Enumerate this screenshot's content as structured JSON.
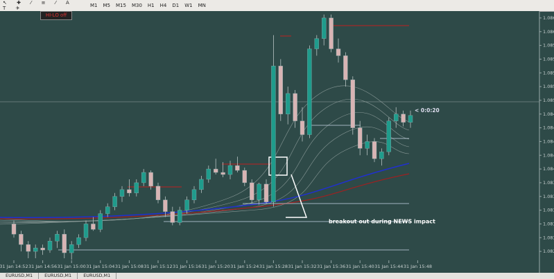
{
  "toolbar": {
    "timeframes": [
      "M1",
      "M5",
      "M15",
      "M30",
      "H1",
      "H4",
      "D1",
      "W1",
      "MN"
    ],
    "button": "HI-LO off"
  },
  "tabs": [
    "EURUSD,M1",
    "EURUSD,M1",
    "EURUSD,M1"
  ],
  "chart_data": {
    "type": "candlestick",
    "annotations": {
      "news": "breakout out during NEWS  impact",
      "timer": "< 0:0:20"
    },
    "categories": [
      "31 Jan 14:52",
      null,
      null,
      null,
      "31 Jan 14:56",
      null,
      null,
      null,
      "31 Jan 15:00",
      null,
      null,
      null,
      "31 Jan 15:04",
      null,
      null,
      null,
      "31 Jan 15:08",
      null,
      null,
      null,
      "31 Jan 15:12",
      null,
      null,
      null,
      "31 Jan 15:16",
      null,
      null,
      null,
      "31 Jan 15:20",
      null,
      null,
      null,
      "31 Jan 15:24",
      null,
      null,
      null,
      "31 Jan 15:28",
      null,
      null,
      null,
      "31 Jan 15:32",
      null,
      null,
      null,
      "31 Jan 15:36",
      null,
      null,
      null,
      "31 Jan 15:40",
      null,
      null,
      null,
      "31 Jan 15:44",
      null,
      null,
      null,
      "31 Jan 15:48"
    ],
    "open": [
      1.0832,
      1.08305,
      1.0829,
      1.0828,
      1.08285,
      1.08282,
      1.08295,
      1.08305,
      1.08278,
      1.0829,
      1.083,
      1.0832,
      1.08312,
      1.08335,
      1.08345,
      1.0836,
      1.0837,
      1.08365,
      1.0838,
      1.08395,
      1.08375,
      1.08355,
      1.08338,
      1.08322,
      1.0834,
      1.08355,
      1.0837,
      1.08385,
      1.084,
      1.08395,
      1.08392,
      1.08405,
      1.08398,
      1.0838,
      1.08355,
      1.08378,
      1.08352,
      1.0855,
      1.0848,
      1.0851,
      1.0847,
      1.0845,
      1.08575,
      1.0859,
      1.0862,
      1.08575,
      1.08565,
      1.0853,
      1.0846,
      1.0843,
      1.0844,
      1.08415,
      1.08425,
      1.0847,
      1.0848,
      1.08468,
      null
    ],
    "high": [
      1.08325,
      1.0831,
      1.08295,
      1.0829,
      1.0829,
      1.083,
      1.0831,
      1.08312,
      1.08295,
      1.08305,
      1.08325,
      1.0833,
      1.0834,
      1.0835,
      1.08365,
      1.08375,
      1.08385,
      1.08385,
      1.084,
      1.08398,
      1.0838,
      1.0836,
      1.08345,
      1.08345,
      1.0836,
      1.08375,
      1.0839,
      1.08405,
      1.08415,
      1.0841,
      1.08412,
      1.08418,
      1.08402,
      1.08385,
      1.0838,
      1.08385,
      1.08595,
      1.0856,
      1.0852,
      1.08515,
      1.0849,
      1.0858,
      1.08595,
      1.08625,
      1.08625,
      1.0859,
      1.0857,
      1.08535,
      1.0847,
      1.0845,
      1.08445,
      1.0843,
      1.08475,
      1.0849,
      1.08485,
      1.08485,
      null
    ],
    "low": [
      1.083,
      1.0828,
      1.0827,
      1.0827,
      1.08275,
      1.08278,
      1.08285,
      1.0827,
      1.08268,
      1.08285,
      1.08295,
      1.0831,
      1.08308,
      1.0833,
      1.0834,
      1.08352,
      1.0836,
      1.0836,
      1.08375,
      1.0837,
      1.0835,
      1.0833,
      1.08318,
      1.08318,
      1.08335,
      1.0835,
      1.08365,
      1.0838,
      1.08392,
      1.08388,
      1.08385,
      1.08395,
      1.08375,
      1.0835,
      1.08348,
      1.0835,
      1.08345,
      1.0847,
      1.08465,
      1.0846,
      1.0844,
      1.08445,
      1.08565,
      1.0858,
      1.0857,
      1.08555,
      1.0852,
      1.0845,
      1.0842,
      1.0842,
      1.0841,
      1.08405,
      1.0842,
      1.0846,
      1.08462,
      1.0846,
      null
    ],
    "close": [
      1.08305,
      1.0829,
      1.0828,
      1.08285,
      1.08282,
      1.08295,
      1.08305,
      1.08278,
      1.0829,
      1.083,
      1.0832,
      1.08312,
      1.08335,
      1.08345,
      1.0836,
      1.0837,
      1.08365,
      1.0838,
      1.08395,
      1.08375,
      1.08355,
      1.08338,
      1.08322,
      1.0834,
      1.08355,
      1.0837,
      1.08385,
      1.084,
      1.08395,
      1.08392,
      1.08405,
      1.08398,
      1.0838,
      1.08355,
      1.08378,
      1.08352,
      1.0855,
      1.0848,
      1.0851,
      1.0847,
      1.0845,
      1.08575,
      1.0859,
      1.0862,
      1.08575,
      1.08565,
      1.0853,
      1.0846,
      1.0843,
      1.0844,
      1.08415,
      1.08425,
      1.0847,
      1.0848,
      1.08468,
      1.08478,
      null
    ],
    "ylim": [
      1.08267,
      1.0863
    ],
    "yticks": [
      1.0862,
      {
        "value": 1.086,
        "label": "1.0860"
      },
      1.0858,
      1.0856,
      1.0854,
      1.0852,
      {
        "value": 1.085,
        "label": "1.0850"
      },
      1.0848,
      1.0846,
      1.0844,
      1.0842,
      {
        "value": 1.084,
        "label": "1.0840"
      },
      1.0838,
      1.0836,
      1.0834,
      1.0832,
      {
        "value": 1.083,
        "label": "1.0830"
      },
      1.0828
    ],
    "colors": {
      "up": "#1f9c8c",
      "down": "#d8b4b4"
    }
  }
}
